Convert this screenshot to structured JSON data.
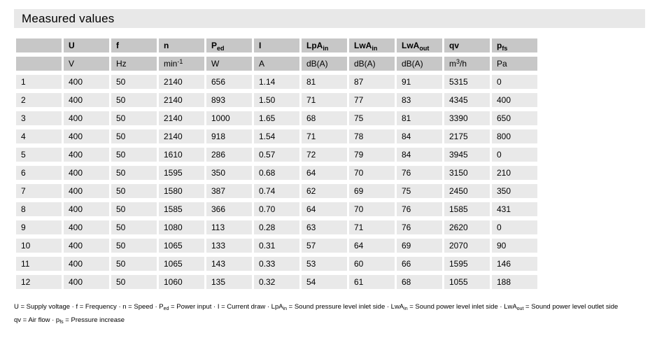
{
  "title": "Measured values",
  "colors": {
    "title_bar_bg": "#e8e8e8",
    "header_bg": "#c7c7c7",
    "cell_bg": "#e9e9e9",
    "text": "#000000",
    "page_bg": "#ffffff"
  },
  "table": {
    "columns": [
      {
        "id": "row",
        "base": "",
        "sub": "",
        "unit_pre": "",
        "unit_sup": "",
        "unit_post": ""
      },
      {
        "id": "u",
        "base": "U",
        "sub": "",
        "unit_pre": "V",
        "unit_sup": "",
        "unit_post": ""
      },
      {
        "id": "f",
        "base": "f",
        "sub": "",
        "unit_pre": "Hz",
        "unit_sup": "",
        "unit_post": ""
      },
      {
        "id": "n",
        "base": "n",
        "sub": "",
        "unit_pre": "min",
        "unit_sup": "-1",
        "unit_post": ""
      },
      {
        "id": "ped",
        "base": "P",
        "sub": "ed",
        "unit_pre": "W",
        "unit_sup": "",
        "unit_post": ""
      },
      {
        "id": "i",
        "base": "I",
        "sub": "",
        "unit_pre": "A",
        "unit_sup": "",
        "unit_post": ""
      },
      {
        "id": "lpa-in",
        "base": "LpA",
        "sub": "in",
        "unit_pre": "dB(A)",
        "unit_sup": "",
        "unit_post": ""
      },
      {
        "id": "lwa-in",
        "base": "LwA",
        "sub": "in",
        "unit_pre": "dB(A)",
        "unit_sup": "",
        "unit_post": ""
      },
      {
        "id": "lwa-out",
        "base": "LwA",
        "sub": "out",
        "unit_pre": "dB(A)",
        "unit_sup": "",
        "unit_post": ""
      },
      {
        "id": "qv",
        "base": "qv",
        "sub": "",
        "unit_pre": "m",
        "unit_sup": "3",
        "unit_post": "/h"
      },
      {
        "id": "pfs",
        "base": "p",
        "sub": "fs",
        "unit_pre": "Pa",
        "unit_sup": "",
        "unit_post": ""
      }
    ],
    "rows": [
      [
        "1",
        "400",
        "50",
        "2140",
        "656",
        "1.14",
        "81",
        "87",
        "91",
        "5315",
        "0"
      ],
      [
        "2",
        "400",
        "50",
        "2140",
        "893",
        "1.50",
        "71",
        "77",
        "83",
        "4345",
        "400"
      ],
      [
        "3",
        "400",
        "50",
        "2140",
        "1000",
        "1.65",
        "68",
        "75",
        "81",
        "3390",
        "650"
      ],
      [
        "4",
        "400",
        "50",
        "2140",
        "918",
        "1.54",
        "71",
        "78",
        "84",
        "2175",
        "800"
      ],
      [
        "5",
        "400",
        "50",
        "1610",
        "286",
        "0.57",
        "72",
        "79",
        "84",
        "3945",
        "0"
      ],
      [
        "6",
        "400",
        "50",
        "1595",
        "350",
        "0.68",
        "64",
        "70",
        "76",
        "3150",
        "210"
      ],
      [
        "7",
        "400",
        "50",
        "1580",
        "387",
        "0.74",
        "62",
        "69",
        "75",
        "2450",
        "350"
      ],
      [
        "8",
        "400",
        "50",
        "1585",
        "366",
        "0.70",
        "64",
        "70",
        "76",
        "1585",
        "431"
      ],
      [
        "9",
        "400",
        "50",
        "1080",
        "113",
        "0.28",
        "63",
        "71",
        "76",
        "2620",
        "0"
      ],
      [
        "10",
        "400",
        "50",
        "1065",
        "133",
        "0.31",
        "57",
        "64",
        "69",
        "2070",
        "90"
      ],
      [
        "11",
        "400",
        "50",
        "1065",
        "143",
        "0.33",
        "53",
        "60",
        "66",
        "1595",
        "146"
      ],
      [
        "12",
        "400",
        "50",
        "1060",
        "135",
        "0.32",
        "54",
        "61",
        "68",
        "1055",
        "188"
      ]
    ]
  },
  "footnotes": [
    {
      "segments": [
        {
          "text": "U = Supply voltage · f = Frequency · n = Speed · P"
        },
        {
          "sub": "ed"
        },
        {
          "text": " = Power input · I = Current draw · LpA"
        },
        {
          "sub": "in"
        },
        {
          "text": " = Sound pressure level inlet side · LwA"
        },
        {
          "sub": "in"
        },
        {
          "text": " = Sound power level inlet side · LwA"
        },
        {
          "sub": "out"
        },
        {
          "text": " = Sound power level outlet side"
        }
      ]
    },
    {
      "segments": [
        {
          "text": "qv = Air flow · p"
        },
        {
          "sub": "fs"
        },
        {
          "text": " = Pressure increase"
        }
      ]
    }
  ]
}
